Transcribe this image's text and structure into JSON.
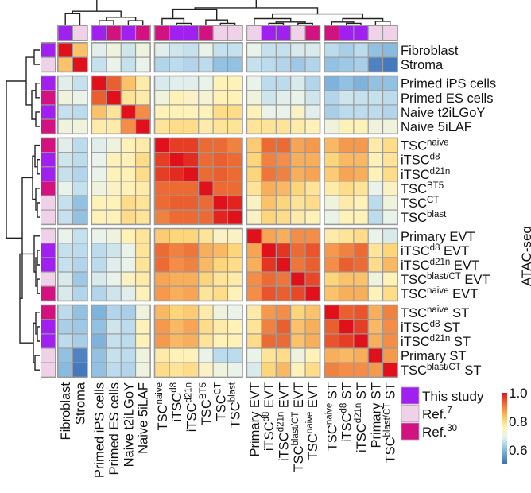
{
  "chart_data": {
    "type": "heatmap",
    "labels": [
      {
        "base": "Fibroblast",
        "sup": "",
        "suffix": ""
      },
      {
        "base": "Stroma",
        "sup": "",
        "suffix": ""
      },
      {
        "base": "Primed iPS cells",
        "sup": "",
        "suffix": ""
      },
      {
        "base": "Primed ES cells",
        "sup": "",
        "suffix": ""
      },
      {
        "base": "Naive t2iLGoY",
        "sup": "",
        "suffix": ""
      },
      {
        "base": "Naive 5iLAF",
        "sup": "",
        "suffix": ""
      },
      {
        "base": "TSC",
        "sup": "naive",
        "suffix": ""
      },
      {
        "base": "iTSC",
        "sup": "d8",
        "suffix": ""
      },
      {
        "base": "iTSC",
        "sup": "d21n",
        "suffix": ""
      },
      {
        "base": "TSC",
        "sup": "BT5",
        "suffix": ""
      },
      {
        "base": "TSC",
        "sup": "CT",
        "suffix": ""
      },
      {
        "base": "TSC",
        "sup": "blast",
        "suffix": ""
      },
      {
        "base": "Primary EVT",
        "sup": "",
        "suffix": ""
      },
      {
        "base": "iTSC",
        "sup": "d8",
        "suffix": " EVT"
      },
      {
        "base": "iTSC",
        "sup": "d21n",
        "suffix": " EVT"
      },
      {
        "base": "TSC",
        "sup": "blast/CT",
        "suffix": " EVT"
      },
      {
        "base": "TSC",
        "sup": "naive",
        "suffix": " EVT"
      },
      {
        "base": "TSC",
        "sup": "naive",
        "suffix": " ST"
      },
      {
        "base": "iTSC",
        "sup": "d8",
        "suffix": " ST"
      },
      {
        "base": "iTSC",
        "sup": "d21n",
        "suffix": " ST"
      },
      {
        "base": "Primary ST",
        "sup": "",
        "suffix": ""
      },
      {
        "base": "TSC",
        "sup": "blast/CT",
        "suffix": " ST"
      }
    ],
    "source": [
      "This study",
      "Ref.7",
      "This study",
      "Ref.30",
      "This study",
      "Ref.30",
      "Ref.30",
      "This study",
      "This study",
      "Ref.30",
      "Ref.7",
      "Ref.7",
      "Ref.7",
      "This study",
      "This study",
      "Ref.7",
      "Ref.30",
      "Ref.30",
      "This study",
      "This study",
      "Ref.7",
      "Ref.7"
    ],
    "values": [
      [
        1.0,
        0.83,
        0.72,
        0.74,
        0.7,
        0.74,
        0.72,
        0.7,
        0.69,
        0.73,
        0.69,
        0.69,
        0.73,
        0.69,
        0.69,
        0.71,
        0.71,
        0.68,
        0.66,
        0.68,
        0.64,
        0.63
      ],
      [
        0.83,
        1.0,
        0.69,
        0.73,
        0.69,
        0.73,
        0.67,
        0.68,
        0.67,
        0.68,
        0.64,
        0.64,
        0.69,
        0.68,
        0.67,
        0.65,
        0.67,
        0.64,
        0.65,
        0.66,
        0.57,
        0.56
      ],
      [
        0.72,
        0.69,
        1.0,
        0.92,
        0.83,
        0.78,
        0.71,
        0.72,
        0.72,
        0.73,
        0.77,
        0.77,
        0.73,
        0.68,
        0.68,
        0.71,
        0.67,
        0.62,
        0.64,
        0.62,
        0.64,
        0.64
      ],
      [
        0.74,
        0.73,
        0.92,
        1.0,
        0.79,
        0.78,
        0.74,
        0.77,
        0.76,
        0.75,
        0.77,
        0.77,
        0.74,
        0.7,
        0.72,
        0.73,
        0.7,
        0.67,
        0.7,
        0.69,
        0.69,
        0.68
      ],
      [
        0.69,
        0.68,
        0.83,
        0.79,
        1.0,
        0.88,
        0.77,
        0.77,
        0.77,
        0.77,
        0.8,
        0.8,
        0.77,
        0.73,
        0.73,
        0.76,
        0.72,
        0.66,
        0.68,
        0.68,
        0.68,
        0.67
      ],
      [
        0.74,
        0.74,
        0.78,
        0.78,
        0.88,
        1.0,
        0.79,
        0.8,
        0.8,
        0.78,
        0.79,
        0.79,
        0.79,
        0.79,
        0.79,
        0.78,
        0.77,
        0.74,
        0.77,
        0.77,
        0.74,
        0.74
      ],
      [
        0.72,
        0.68,
        0.72,
        0.74,
        0.77,
        0.78,
        1.0,
        0.95,
        0.95,
        0.91,
        0.91,
        0.89,
        0.82,
        0.91,
        0.91,
        0.86,
        0.87,
        0.84,
        0.87,
        0.87,
        0.78,
        0.8
      ],
      [
        0.7,
        0.68,
        0.73,
        0.77,
        0.77,
        0.8,
        0.95,
        1.0,
        0.97,
        0.91,
        0.92,
        0.91,
        0.81,
        0.89,
        0.88,
        0.85,
        0.85,
        0.81,
        0.84,
        0.84,
        0.77,
        0.79
      ],
      [
        0.69,
        0.67,
        0.73,
        0.77,
        0.77,
        0.8,
        0.95,
        0.97,
        1.0,
        0.91,
        0.92,
        0.91,
        0.81,
        0.9,
        0.89,
        0.85,
        0.86,
        0.82,
        0.86,
        0.85,
        0.77,
        0.8
      ],
      [
        0.73,
        0.69,
        0.74,
        0.76,
        0.77,
        0.78,
        0.91,
        0.91,
        0.91,
        1.0,
        0.91,
        0.91,
        0.79,
        0.85,
        0.84,
        0.81,
        0.79,
        0.78,
        0.8,
        0.79,
        0.73,
        0.76
      ],
      [
        0.69,
        0.64,
        0.77,
        0.77,
        0.8,
        0.79,
        0.91,
        0.92,
        0.92,
        0.91,
        1.0,
        0.98,
        0.76,
        0.83,
        0.81,
        0.79,
        0.8,
        0.74,
        0.78,
        0.77,
        0.68,
        0.74
      ],
      [
        0.69,
        0.64,
        0.77,
        0.77,
        0.8,
        0.79,
        0.89,
        0.91,
        0.91,
        0.91,
        0.98,
        1.0,
        0.76,
        0.81,
        0.8,
        0.78,
        0.77,
        0.73,
        0.77,
        0.77,
        0.68,
        0.73
      ],
      [
        0.73,
        0.69,
        0.73,
        0.74,
        0.77,
        0.79,
        0.82,
        0.81,
        0.81,
        0.79,
        0.76,
        0.76,
        1.0,
        0.86,
        0.85,
        0.88,
        0.88,
        0.78,
        0.79,
        0.8,
        0.73,
        0.71
      ],
      [
        0.69,
        0.68,
        0.68,
        0.7,
        0.73,
        0.79,
        0.91,
        0.89,
        0.9,
        0.85,
        0.84,
        0.81,
        0.86,
        1.0,
        0.96,
        0.91,
        0.93,
        0.87,
        0.89,
        0.91,
        0.79,
        0.81
      ],
      [
        0.69,
        0.67,
        0.68,
        0.72,
        0.73,
        0.79,
        0.91,
        0.88,
        0.89,
        0.84,
        0.81,
        0.8,
        0.85,
        0.96,
        1.0,
        0.9,
        0.92,
        0.88,
        0.92,
        0.91,
        0.8,
        0.84
      ],
      [
        0.71,
        0.65,
        0.71,
        0.73,
        0.76,
        0.78,
        0.86,
        0.85,
        0.85,
        0.81,
        0.79,
        0.78,
        0.88,
        0.91,
        0.9,
        1.0,
        0.94,
        0.81,
        0.83,
        0.83,
        0.74,
        0.77
      ],
      [
        0.71,
        0.67,
        0.67,
        0.7,
        0.72,
        0.77,
        0.87,
        0.85,
        0.86,
        0.79,
        0.8,
        0.77,
        0.88,
        0.93,
        0.92,
        0.94,
        1.0,
        0.83,
        0.85,
        0.85,
        0.77,
        0.8
      ],
      [
        0.68,
        0.64,
        0.62,
        0.67,
        0.66,
        0.74,
        0.84,
        0.81,
        0.82,
        0.78,
        0.74,
        0.73,
        0.78,
        0.87,
        0.88,
        0.81,
        0.83,
        1.0,
        0.92,
        0.93,
        0.85,
        0.89
      ],
      [
        0.66,
        0.65,
        0.64,
        0.7,
        0.68,
        0.77,
        0.87,
        0.84,
        0.86,
        0.8,
        0.78,
        0.77,
        0.79,
        0.89,
        0.92,
        0.83,
        0.85,
        0.92,
        1.0,
        0.95,
        0.84,
        0.88
      ],
      [
        0.68,
        0.66,
        0.62,
        0.69,
        0.68,
        0.77,
        0.87,
        0.84,
        0.85,
        0.79,
        0.77,
        0.77,
        0.8,
        0.91,
        0.91,
        0.83,
        0.85,
        0.93,
        0.95,
        1.0,
        0.85,
        0.88
      ],
      [
        0.64,
        0.57,
        0.64,
        0.69,
        0.68,
        0.74,
        0.78,
        0.77,
        0.77,
        0.73,
        0.68,
        0.68,
        0.73,
        0.79,
        0.8,
        0.74,
        0.77,
        0.85,
        0.84,
        0.85,
        1.0,
        0.87
      ],
      [
        0.63,
        0.56,
        0.64,
        0.68,
        0.67,
        0.74,
        0.8,
        0.79,
        0.8,
        0.76,
        0.74,
        0.73,
        0.71,
        0.81,
        0.84,
        0.77,
        0.8,
        0.89,
        0.88,
        0.88,
        0.87,
        1.0
      ]
    ],
    "colorbar": {
      "range": [
        0.5,
        1.0
      ],
      "ticks": [
        {
          "value": 1.0,
          "label": "1.0"
        },
        {
          "value": 0.8,
          "label": "0.8"
        },
        {
          "value": 0.6,
          "label": "0.6"
        }
      ],
      "colormap": "reversed red-yellow-blue"
    },
    "legend": [
      {
        "key": "This study",
        "base": "This study",
        "sup": "",
        "color": "#a020f0"
      },
      {
        "key": "Ref.7",
        "base": "Ref.",
        "sup": "7",
        "color": "#f0d2e8"
      },
      {
        "key": "Ref.30",
        "base": "Ref.",
        "sup": "30",
        "color": "#d1127f"
      }
    ],
    "dendrograms": "rows and columns clustered, dendrogram on top and left"
  },
  "side_label": "ATAC-seq"
}
